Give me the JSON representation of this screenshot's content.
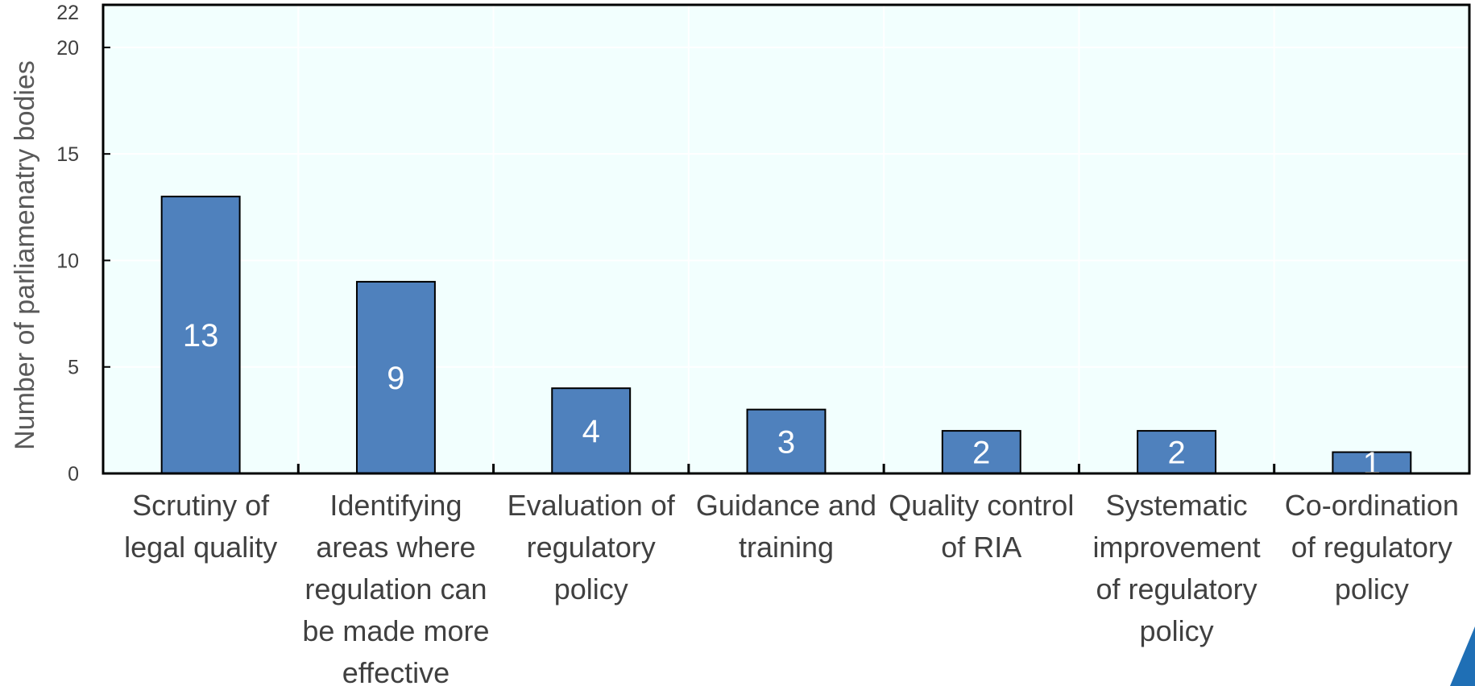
{
  "chart_data": {
    "type": "bar",
    "ylabel": "Number of parliamenatry bodies",
    "ylim": [
      0,
      22
    ],
    "yticks": [
      0,
      5,
      10,
      15,
      20,
      22
    ],
    "grid": "horizontal and vertical, white",
    "categories": [
      [
        "Scrutiny of",
        "legal quality"
      ],
      [
        "Identifying",
        "areas where",
        "regulation can",
        "be made more",
        "effective"
      ],
      [
        "Evaluation of",
        "regulatory",
        "policy"
      ],
      [
        "Guidance and",
        "training"
      ],
      [
        "Quality control",
        "of RIA"
      ],
      [
        "Systematic",
        "improvement",
        "of regulatory",
        "policy"
      ],
      [
        "Co-ordination",
        "of regulatory",
        "policy"
      ]
    ],
    "values": [
      13,
      9,
      4,
      3,
      2,
      2,
      1
    ],
    "data_labels": [
      "13",
      "9",
      "4",
      "3",
      "2",
      "2",
      "1"
    ],
    "colors": {
      "bar": "#4f81bd",
      "plot_background": "#f2fffe",
      "axis": "#000000",
      "grid": "#ffffff",
      "corner_accent": "#1f6fb5"
    }
  }
}
